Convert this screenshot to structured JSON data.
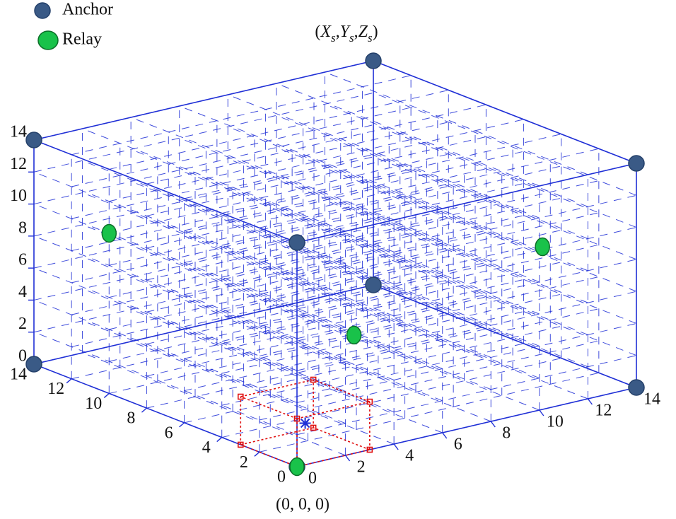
{
  "chart_data": {
    "type": "scatter3d",
    "series": [
      {
        "name": "Anchor",
        "color": "#3a5a86",
        "x": [
          0,
          14,
          0,
          14,
          0,
          14,
          0,
          14
        ],
        "y": [
          0,
          0,
          14,
          14,
          0,
          0,
          14,
          14
        ],
        "z": [
          0,
          0,
          0,
          0,
          14,
          14,
          14,
          14
        ]
      },
      {
        "name": "Relay",
        "color": "#19c24a",
        "x": [
          0,
          0,
          7,
          14
        ],
        "y": [
          0,
          10,
          6,
          5
        ],
        "z": [
          0,
          10,
          3,
          6.5
        ]
      }
    ],
    "xlim": [
      0,
      14
    ],
    "ylim": [
      0,
      14
    ],
    "zlim": [
      0,
      14
    ],
    "xticks": [
      0,
      2,
      4,
      6,
      8,
      10,
      12,
      14
    ],
    "yticks": [
      0,
      2,
      4,
      6,
      8,
      10,
      12,
      14
    ],
    "zticks": [
      0,
      2,
      4,
      6,
      8,
      10,
      12,
      14
    ],
    "grid": true,
    "corner_labels": [
      "(0, 0, 0)",
      "(Xs,Ys,Zs)"
    ],
    "sub_cube": {
      "size": 3,
      "color": "#e01010"
    },
    "legend": "upper left"
  }
}
